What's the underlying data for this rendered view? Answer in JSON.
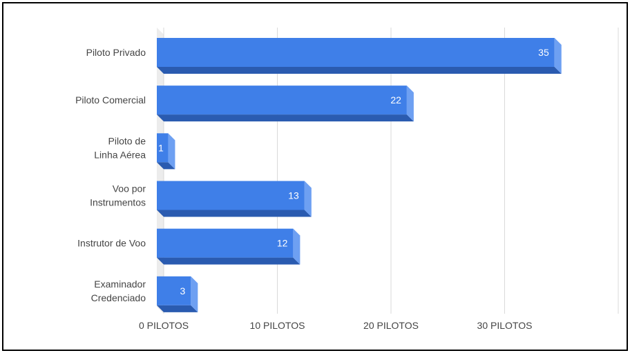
{
  "chart_data": {
    "type": "bar",
    "orientation": "horizontal",
    "style": "3d",
    "title": "",
    "categories": [
      "Piloto Privado",
      "Piloto Comercial",
      "Piloto de Linha Aérea",
      "Voo por Instrumentos",
      "Instrutor de Voo",
      "Examinador Credenciado"
    ],
    "values": [
      35,
      22,
      1,
      13,
      12,
      3
    ],
    "x_ticks": [
      "0 PILOTOS",
      "10 PILOTOS",
      "20 PILOTOS",
      "30 PILOTOS"
    ],
    "xlim": [
      0,
      40
    ],
    "grid": true,
    "xlabel": "",
    "ylabel": "",
    "colors": {
      "bar_front": "#3f7fe8",
      "bar_side": "#6ea0f2",
      "bar_bottom": "#2a5bb0",
      "grid": "#d9d9d9",
      "floor": "#ececec"
    }
  }
}
